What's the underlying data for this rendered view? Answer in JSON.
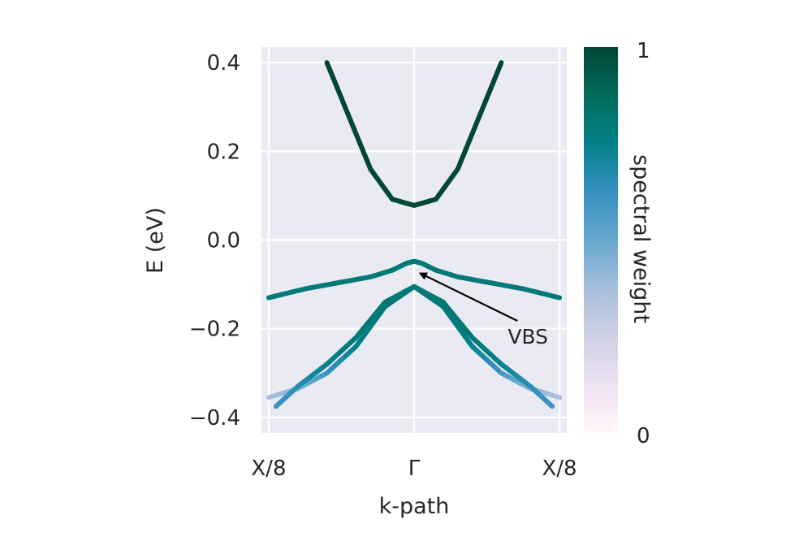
{
  "chart_data": {
    "type": "line",
    "xlabel": "k-path",
    "ylabel": "E (eV)",
    "xticks": [
      "X/8",
      "Γ",
      "X/8"
    ],
    "yticks": [
      "0.4",
      "0.2",
      "0.0",
      "−0.2",
      "−0.4"
    ],
    "ytick_values": [
      0.4,
      0.2,
      0.0,
      -0.2,
      -0.4
    ],
    "xlim": [
      -1.05,
      1.05
    ],
    "ylim": [
      -0.435,
      0.435
    ],
    "grid": true,
    "colorbar": {
      "label": "spectral weight",
      "min_label": "0",
      "max_label": "1",
      "colormap": "PuBuGn",
      "stops": [
        "#fff7fb",
        "#ece2f0",
        "#d0d1e6",
        "#a6bddb",
        "#67a9cf",
        "#3690c0",
        "#02818a",
        "#016c59",
        "#014636"
      ]
    },
    "series": [
      {
        "x": [
          -0.6,
          -0.45,
          -0.3,
          -0.15,
          0.0,
          0.15,
          0.3,
          0.45,
          0.6
        ],
        "y": [
          0.4,
          0.28,
          0.16,
          0.092,
          0.078,
          0.092,
          0.16,
          0.28,
          0.4
        ],
        "weight": [
          1.0,
          1.0,
          1.0,
          1.0,
          1.0,
          1.0,
          1.0,
          1.0,
          1.0
        ]
      },
      {
        "x": [
          -1.0,
          -0.75,
          -0.5,
          -0.3,
          -0.15,
          -0.05,
          0.0,
          0.05,
          0.15,
          0.3,
          0.5,
          0.75,
          1.0
        ],
        "y": [
          -0.13,
          -0.11,
          -0.095,
          -0.083,
          -0.068,
          -0.052,
          -0.048,
          -0.052,
          -0.068,
          -0.083,
          -0.095,
          -0.11,
          -0.13
        ],
        "weight": [
          0.8,
          0.8,
          0.8,
          0.8,
          0.8,
          0.8,
          0.8,
          0.8,
          0.8,
          0.8,
          0.8,
          0.8,
          0.8
        ]
      },
      {
        "x": [
          -1.0,
          -0.8,
          -0.6,
          -0.4,
          -0.2,
          0.0,
          0.2,
          0.4,
          0.6,
          0.8,
          1.0
        ],
        "y": [
          -0.355,
          -0.335,
          -0.3,
          -0.24,
          -0.15,
          -0.105,
          -0.15,
          -0.24,
          -0.3,
          -0.335,
          -0.355
        ],
        "weight": [
          0.35,
          0.45,
          0.6,
          0.75,
          0.8,
          0.8,
          0.8,
          0.75,
          0.6,
          0.45,
          0.35
        ]
      },
      {
        "x": [
          -0.95,
          -0.8,
          -0.6,
          -0.4,
          -0.2,
          0.0,
          0.2,
          0.4,
          0.6,
          0.8,
          0.95
        ],
        "y": [
          -0.375,
          -0.33,
          -0.28,
          -0.22,
          -0.14,
          -0.105,
          -0.14,
          -0.22,
          -0.28,
          -0.33,
          -0.375
        ],
        "weight": [
          0.6,
          0.65,
          0.75,
          0.8,
          0.8,
          0.8,
          0.8,
          0.8,
          0.75,
          0.65,
          0.6
        ]
      }
    ],
    "annotations": [
      {
        "text": "VBS",
        "xy": [
          0.02,
          -0.075
        ],
        "xytext": [
          0.7,
          -0.175
        ]
      }
    ]
  }
}
